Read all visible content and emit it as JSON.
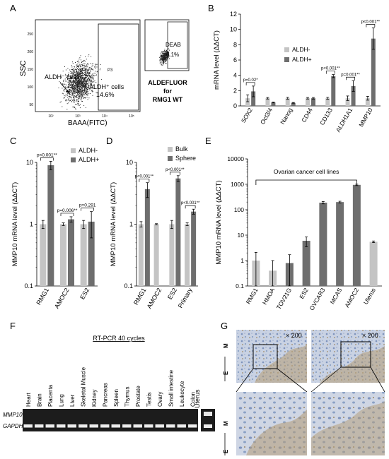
{
  "colors": {
    "light": "#c4c4c4",
    "dark": "#6e6e6e",
    "dark2": "#5a5a5a",
    "gel": "#1c1c1c",
    "band": "#ededed",
    "tissue_blue": "#8aa0c4",
    "tissue_brown": "#8a6a3e"
  },
  "panelA": {
    "letter": "A",
    "ylabel": "SSC",
    "xlabel": "BAAA(FITC)",
    "label_neg": "ALDH⁻ cells",
    "label_pos": "ALDH⁺ cells",
    "pos_pct": "14.6%",
    "gate": "P3",
    "deab": "DEAB",
    "deab_pct": "0.1%",
    "caption1": "ALDEFLUOR",
    "caption2": "for",
    "caption3": "RMG1 WT",
    "x_ticks": [
      "10²",
      "10³",
      "10⁴",
      "10⁵"
    ],
    "y_ticks": [
      "50",
      "100",
      "150",
      "200",
      "250"
    ]
  },
  "chart_data": [
    {
      "panel": "B",
      "type": "bar",
      "ylabel": "mRNA level (ΔΔCT)",
      "ylim": [
        0,
        12
      ],
      "y_ticks": [
        0,
        2,
        4,
        6,
        8,
        10,
        12
      ],
      "categories": [
        "SOX2",
        "Oct3/4",
        "Nanog",
        "CD44",
        "CD133",
        "ALDH1A1",
        "MMP10"
      ],
      "series": [
        {
          "name": "ALDH-",
          "values": [
            1.0,
            1.0,
            1.0,
            1.0,
            1.0,
            1.0,
            1.0
          ],
          "errors": [
            0.45,
            0.1,
            0.12,
            0.1,
            0.12,
            0.3,
            0.25
          ]
        },
        {
          "name": "ALDH+",
          "values": [
            1.9,
            0.45,
            0.4,
            1.0,
            3.9,
            2.6,
            8.8
          ],
          "errors": [
            0.7,
            0.05,
            0.05,
            0.1,
            0.2,
            0.7,
            1.4
          ]
        }
      ],
      "annotations": [
        {
          "category": "SOX2",
          "text": "p=0.02*"
        },
        {
          "category": "CD133",
          "text": "p<0.001**"
        },
        {
          "category": "ALDH1A1",
          "text": "p=0.001**"
        },
        {
          "category": "MMP10",
          "text": "p<0.001**"
        }
      ]
    },
    {
      "panel": "C",
      "type": "bar",
      "ylabel": "MMP10 mRNA level (ΔΔCT)",
      "yscale": "log",
      "ylim": [
        0.1,
        10
      ],
      "y_ticks": [
        "0.1",
        "1",
        "10"
      ],
      "categories": [
        "RMG1",
        "AMOC2",
        "ES2"
      ],
      "series": [
        {
          "name": "ALDH-",
          "values": [
            1.0,
            1.0,
            1.0
          ],
          "errors": [
            0.15,
            0.05,
            0.15
          ]
        },
        {
          "name": "ALDH+",
          "values": [
            9.0,
            1.2,
            1.1
          ],
          "errors": [
            1.4,
            0.12,
            0.5
          ]
        }
      ],
      "annotations": [
        {
          "category": "RMG1",
          "text": "p<0.001**"
        },
        {
          "category": "AMOC2",
          "text": "p=0.006**"
        },
        {
          "category": "ES2",
          "text": "p=0.291"
        }
      ]
    },
    {
      "panel": "D",
      "type": "bar",
      "ylabel": "MMP10 mRNA level (ΔΔCT)",
      "yscale": "log",
      "ylim": [
        0.1,
        10
      ],
      "y_ticks": [
        "0.1",
        "1",
        "10"
      ],
      "categories": [
        "RMG1",
        "AMOC2",
        "ES2",
        "Primary"
      ],
      "series": [
        {
          "name": "Bulk",
          "values": [
            1.0,
            1.0,
            1.0,
            1.0
          ],
          "errors": [
            0.1,
            0.02,
            0.15,
            0.05
          ]
        },
        {
          "name": "Sphere",
          "values": [
            3.7,
            null,
            5.5,
            1.6
          ],
          "errors": [
            1.0,
            0,
            0.6,
            0.15
          ]
        }
      ],
      "annotations": [
        {
          "category": "RMG1",
          "text": "p<0.001**"
        },
        {
          "category": "ES2",
          "text": "p<0.001**"
        },
        {
          "category": "Primary",
          "text": "p<0.001**"
        }
      ]
    },
    {
      "panel": "E",
      "type": "bar",
      "ylabel": "MMP10 mRNA level (ΔΔCT)",
      "yscale": "log",
      "ylim": [
        0.1,
        10000
      ],
      "y_ticks": [
        "0.1",
        "1",
        "10",
        "100",
        "1000",
        "10000"
      ],
      "categories": [
        "RMG1",
        "HMOA",
        "TOV21G",
        "ES2",
        "OVCAR3",
        "MCAS",
        "AMOC2",
        "Uterus"
      ],
      "values": [
        1.0,
        0.4,
        0.8,
        6.0,
        190,
        200,
        950,
        5.5
      ],
      "errors": [
        1.1,
        0.6,
        0.9,
        2.5,
        20,
        15,
        60,
        0.4
      ],
      "bracket_label": "Ovarian cancer cell lines"
    }
  ],
  "panelF": {
    "letter": "F",
    "title": "RT-PCR 40 cycles",
    "lanes": [
      "Heart",
      "Brain",
      "Placenta",
      "Lung",
      "Liver",
      "Skeletal Muscle",
      "Kidney",
      "Pancreas",
      "Spleen",
      "Thymus",
      "Prostate",
      "Testis",
      "Ovary",
      "Small intestine",
      "Leukocyte",
      "Colon"
    ],
    "extra_lane": "Uterus",
    "genes": [
      "MMP10",
      "GAPDH"
    ]
  },
  "panelG": {
    "letter": "G",
    "mag1": "× 200",
    "mag2": "× 200",
    "m": "M",
    "e": "E"
  }
}
